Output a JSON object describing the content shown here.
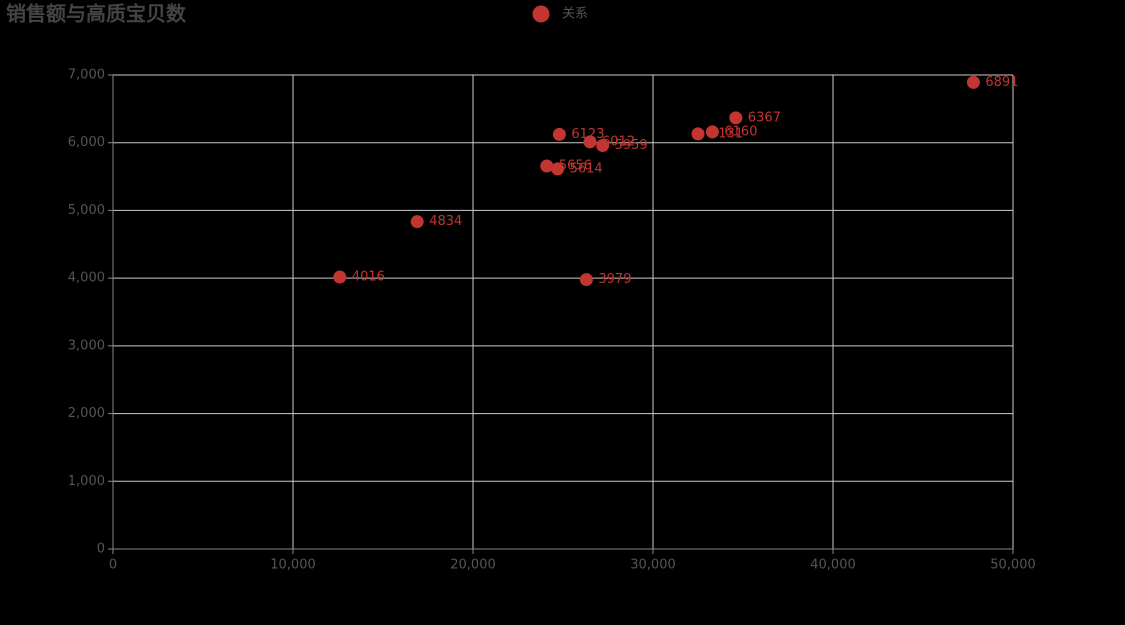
{
  "chart_data": {
    "type": "scatter",
    "title": "销售额与高质宝贝数",
    "series": [
      {
        "name": "关系",
        "color": "#c23531",
        "x": [
          47800,
          34600,
          33300,
          32500,
          24800,
          26500,
          27200,
          24100,
          24700,
          16900,
          12600,
          26300
        ],
        "values": [
          6891,
          6367,
          6160,
          6131,
          6123,
          6012,
          5959,
          5656,
          5614,
          4834,
          4016,
          3979
        ]
      }
    ],
    "xlim": [
      0,
      50000
    ],
    "xticks": [
      0,
      {
        "value": 10000,
        "label": "10,000"
      },
      {
        "value": 20000,
        "label": "20,000"
      },
      {
        "value": 30000,
        "label": "30,000"
      },
      {
        "value": 40000,
        "label": "40,000"
      },
      {
        "value": 50000,
        "label": "50,000"
      }
    ],
    "ylim": [
      0,
      7000
    ],
    "yticks": [
      0,
      {
        "value": 1000,
        "label": "1,000"
      },
      {
        "value": 2000,
        "label": "2,000"
      },
      {
        "value": 3000,
        "label": "3,000"
      },
      {
        "value": 4000,
        "label": "4,000"
      },
      {
        "value": 5000,
        "label": "5,000"
      },
      {
        "value": 6000,
        "label": "6,000"
      },
      {
        "value": 7000,
        "label": "7,000"
      }
    ],
    "grid": true
  }
}
